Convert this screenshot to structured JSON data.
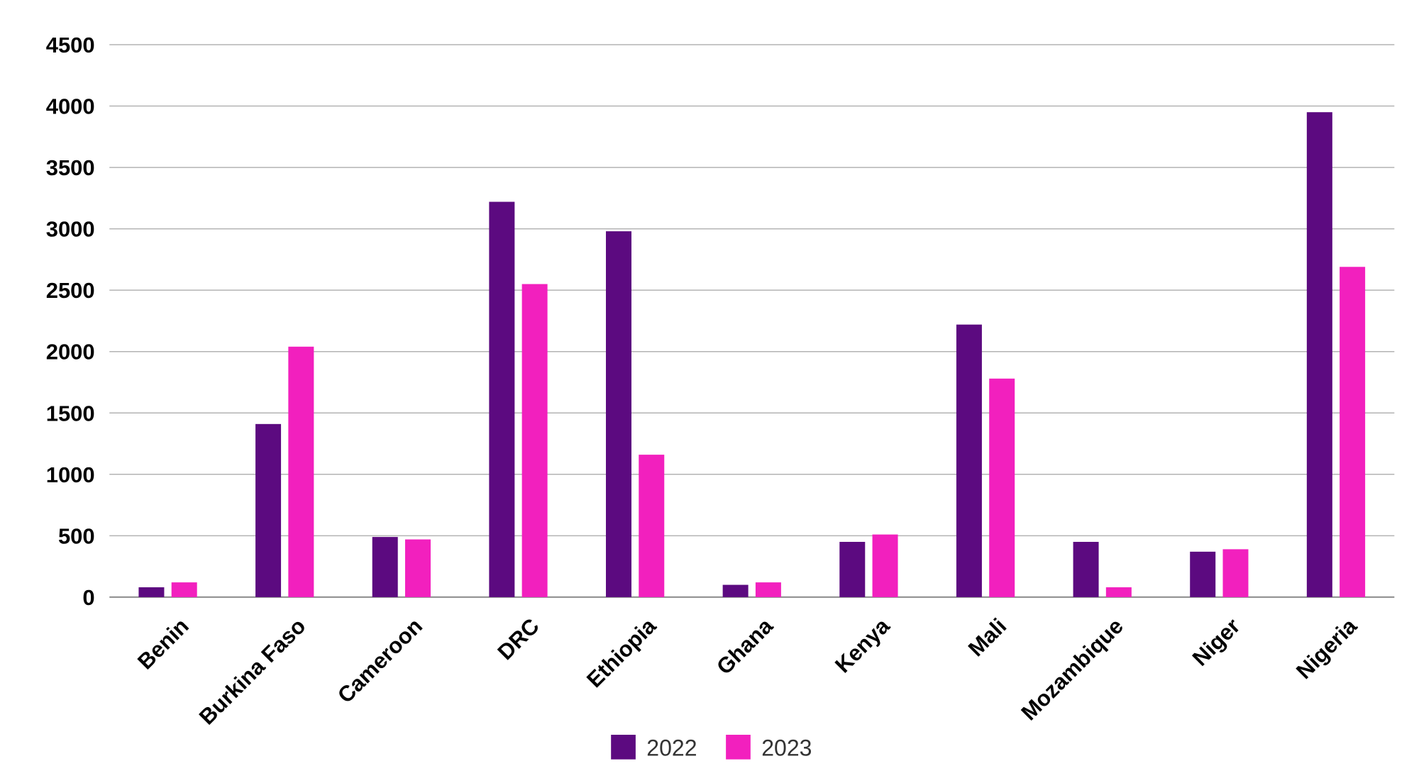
{
  "chart_data": {
    "type": "bar",
    "title": "",
    "xlabel": "",
    "ylabel": "",
    "ylim": [
      0,
      4500
    ],
    "yticks": [
      0,
      500,
      1000,
      1500,
      2000,
      2500,
      3000,
      3500,
      4000,
      4500
    ],
    "grid": true,
    "legend_position": "bottom",
    "categories": [
      "Benin",
      "Burkina Faso",
      "Cameroon",
      "DRC",
      "Ethiopia",
      "Ghana",
      "Kenya",
      "Mali",
      "Mozambique",
      "Niger",
      "Nigeria"
    ],
    "series": [
      {
        "name": "2022",
        "color": "#5c0a80",
        "values": [
          80,
          1410,
          490,
          3220,
          2980,
          100,
          450,
          2220,
          450,
          370,
          3950
        ]
      },
      {
        "name": "2023",
        "color": "#f220be",
        "values": [
          120,
          2040,
          470,
          2550,
          1160,
          120,
          510,
          1780,
          80,
          390,
          2690
        ]
      }
    ]
  }
}
